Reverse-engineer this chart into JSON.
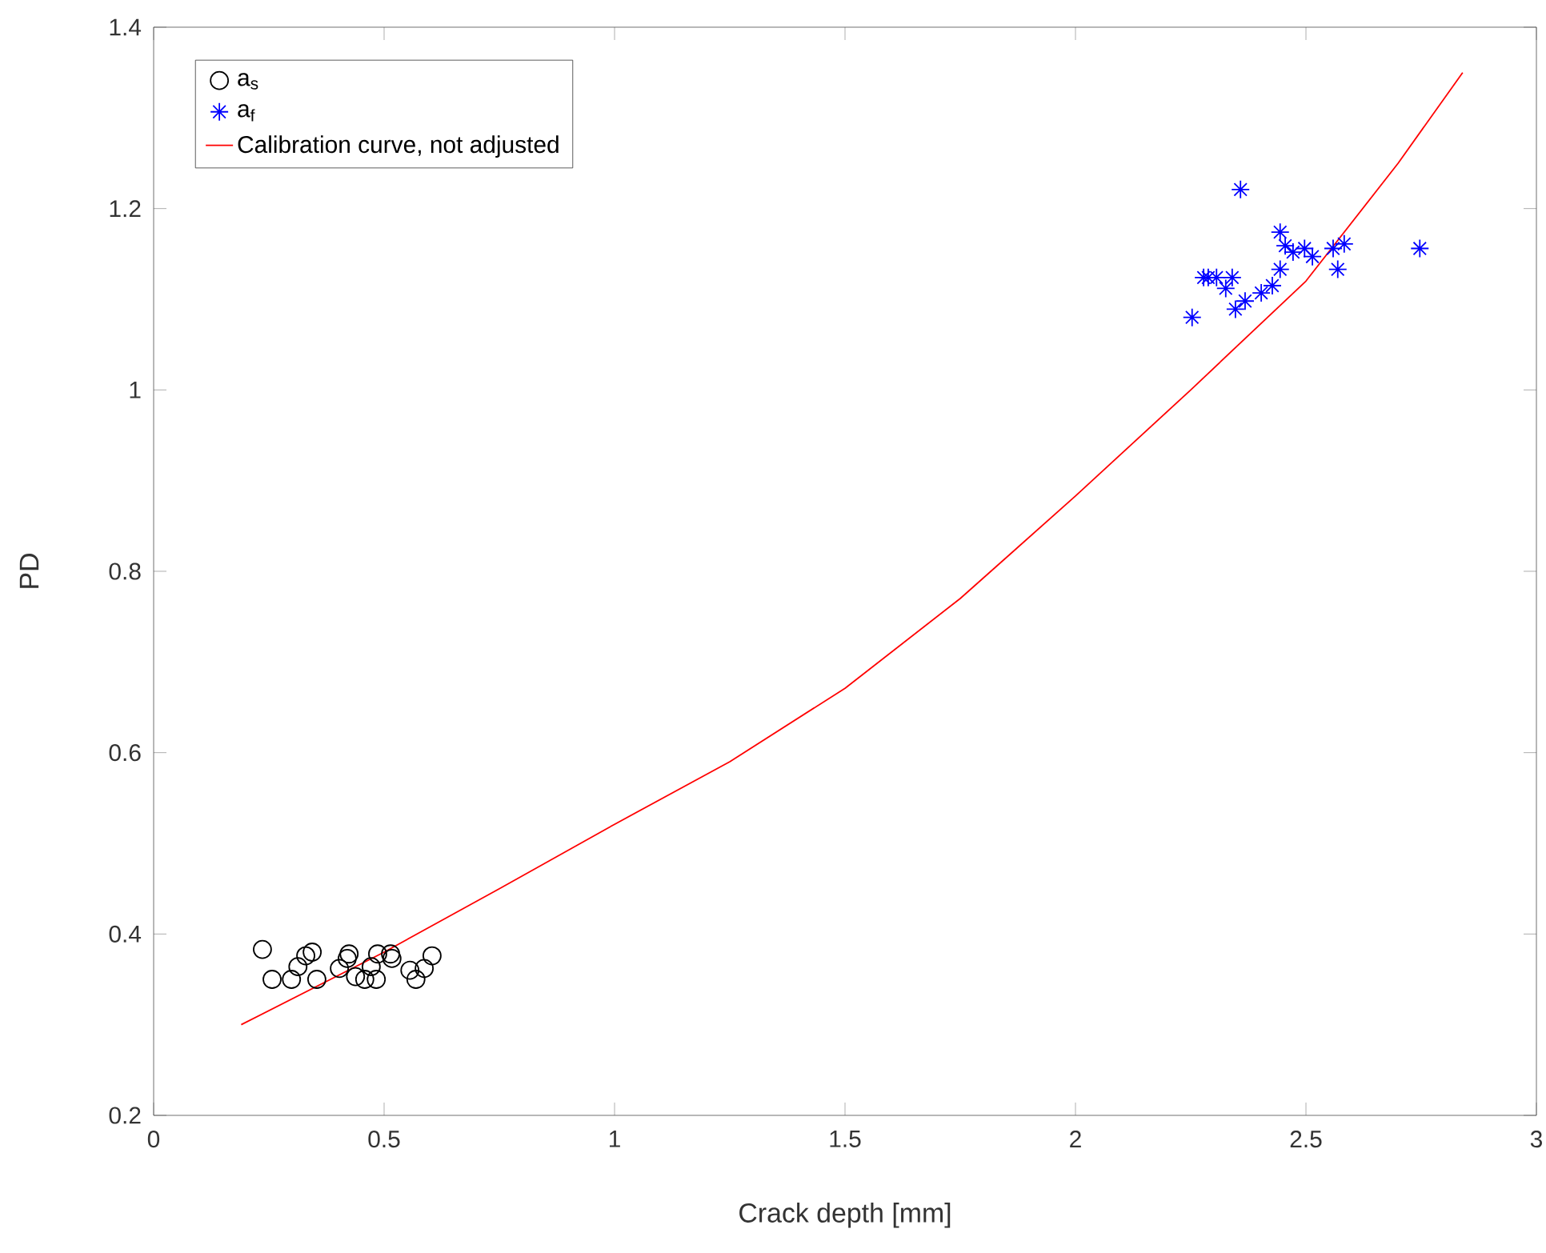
{
  "chart_data": {
    "type": "scatter",
    "xlabel": "Crack depth [mm]",
    "ylabel": "PD",
    "xlim": [
      0,
      3
    ],
    "ylim": [
      0.2,
      1.4
    ],
    "xticks": [
      0,
      0.5,
      1,
      1.5,
      2,
      2.5,
      3
    ],
    "yticks": [
      0.2,
      0.4,
      0.6,
      0.8,
      1,
      1.2,
      1.4
    ],
    "grid": false,
    "legend": "top left",
    "series": [
      {
        "name": "a$_{s}$",
        "type": "scatter",
        "marker": "circle",
        "color": "#000000",
        "x": [
          0.236,
          0.257,
          0.299,
          0.313,
          0.33,
          0.344,
          0.354,
          0.403,
          0.42,
          0.424,
          0.438,
          0.472,
          0.486,
          0.514,
          0.483,
          0.556,
          0.569,
          0.587,
          0.604,
          0.517,
          0.458
        ],
        "values": [
          0.383,
          0.35,
          0.35,
          0.364,
          0.376,
          0.38,
          0.35,
          0.362,
          0.373,
          0.378,
          0.353,
          0.364,
          0.378,
          0.378,
          0.35,
          0.36,
          0.35,
          0.362,
          0.376,
          0.373,
          0.35
        ]
      },
      {
        "name": "a$_{f}$",
        "type": "scatter",
        "marker": "cross",
        "color": "#0000ff",
        "x": [
          2.253,
          2.278,
          2.358,
          2.326,
          2.347,
          2.368,
          2.403,
          2.288,
          2.427,
          2.444,
          2.455,
          2.472,
          2.497,
          2.514,
          2.569,
          2.559,
          2.583,
          2.747,
          2.34,
          2.306,
          2.444
        ],
        "values": [
          1.08,
          1.124,
          1.221,
          1.112,
          1.089,
          1.098,
          1.107,
          1.124,
          1.115,
          1.174,
          1.159,
          1.152,
          1.156,
          1.147,
          1.133,
          1.156,
          1.161,
          1.156,
          1.124,
          1.124,
          1.133
        ]
      },
      {
        "name": "Calibration curve, not adjusted",
        "type": "line",
        "marker": "none",
        "line_style": "solid",
        "color": "#ff0000",
        "x": [
          0.19,
          0.5,
          0.75,
          1,
          1.25,
          1.5,
          1.75,
          2,
          2.25,
          2.5,
          2.7,
          2.84
        ],
        "values": [
          0.3,
          0.38,
          0.45,
          0.521,
          0.59,
          0.671,
          0.77,
          0.883,
          1.0,
          1.12,
          1.25,
          1.35
        ]
      }
    ]
  }
}
